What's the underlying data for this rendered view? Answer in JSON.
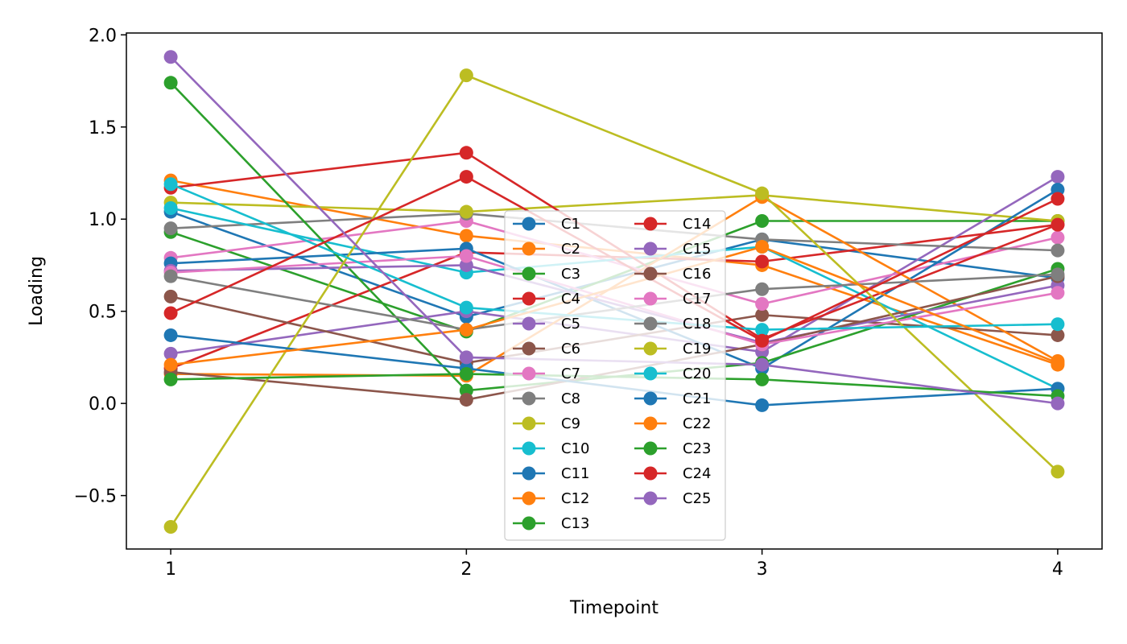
{
  "chart_data": {
    "type": "line",
    "title": "",
    "xlabel": "Timepoint",
    "ylabel": "Loading",
    "x": [
      1,
      2,
      3,
      4
    ],
    "x_ticks": [
      "1",
      "2",
      "3",
      "4"
    ],
    "y_ticks": [
      "−0.5",
      "0.0",
      "0.5",
      "1.0",
      "1.5",
      "2.0"
    ],
    "y_tick_values": [
      -0.5,
      0.0,
      0.5,
      1.0,
      1.5,
      2.0
    ],
    "xlim": [
      0.85,
      4.15
    ],
    "ylim": [
      -0.79,
      2.01
    ],
    "grid": false,
    "legend_position": "center-bottom",
    "legend_columns": 2,
    "marker": "circle",
    "series": [
      {
        "name": "C1",
        "color": "#1f77b4",
        "values": [
          1.04,
          0.47,
          0.89,
          0.68
        ]
      },
      {
        "name": "C2",
        "color": "#ff7f0e",
        "values": [
          1.21,
          0.91,
          0.75,
          0.21
        ]
      },
      {
        "name": "C3",
        "color": "#2ca02c",
        "values": [
          0.93,
          0.39,
          0.99,
          0.99
        ]
      },
      {
        "name": "C4",
        "color": "#d62728",
        "values": [
          0.19,
          0.82,
          0.77,
          0.97
        ]
      },
      {
        "name": "C5",
        "color": "#9467bd",
        "values": [
          0.27,
          0.5,
          0.28,
          1.23
        ]
      },
      {
        "name": "C6",
        "color": "#8c564b",
        "values": [
          0.58,
          0.22,
          0.48,
          0.37
        ]
      },
      {
        "name": "C7",
        "color": "#e377c2",
        "values": [
          0.79,
          0.99,
          0.54,
          0.9
        ]
      },
      {
        "name": "C8",
        "color": "#7f7f7f",
        "values": [
          0.95,
          1.03,
          0.89,
          0.83
        ]
      },
      {
        "name": "C9",
        "color": "#bcbd22",
        "values": [
          1.09,
          1.04,
          1.13,
          0.99
        ]
      },
      {
        "name": "C10",
        "color": "#17becf",
        "values": [
          1.06,
          0.71,
          0.85,
          0.08
        ]
      },
      {
        "name": "C11",
        "color": "#1f77b4",
        "values": [
          0.76,
          0.84,
          0.19,
          1.16
        ]
      },
      {
        "name": "C12",
        "color": "#ff7f0e",
        "values": [
          0.16,
          0.15,
          1.12,
          0.23
        ]
      },
      {
        "name": "C13",
        "color": "#2ca02c",
        "values": [
          1.74,
          0.07,
          0.22,
          0.73
        ]
      },
      {
        "name": "C14",
        "color": "#d62728",
        "values": [
          1.17,
          1.36,
          0.35,
          0.97
        ]
      },
      {
        "name": "C15",
        "color": "#9467bd",
        "values": [
          0.72,
          0.75,
          0.33,
          0.64
        ]
      },
      {
        "name": "C16",
        "color": "#8c564b",
        "values": [
          0.17,
          0.02,
          0.32,
          0.69
        ]
      },
      {
        "name": "C17",
        "color": "#e377c2",
        "values": [
          0.71,
          0.8,
          0.32,
          0.6
        ]
      },
      {
        "name": "C18",
        "color": "#7f7f7f",
        "values": [
          0.69,
          0.4,
          0.62,
          0.7
        ]
      },
      {
        "name": "C19",
        "color": "#bcbd22",
        "values": [
          -0.67,
          1.78,
          1.14,
          -0.37
        ]
      },
      {
        "name": "C20",
        "color": "#17becf",
        "values": [
          1.19,
          0.52,
          0.4,
          0.43
        ]
      },
      {
        "name": "C21",
        "color": "#1f77b4",
        "values": [
          0.37,
          0.19,
          -0.01,
          0.08
        ]
      },
      {
        "name": "C22",
        "color": "#ff7f0e",
        "values": [
          0.21,
          0.4,
          0.85,
          0.22
        ]
      },
      {
        "name": "C23",
        "color": "#2ca02c",
        "values": [
          0.13,
          0.16,
          0.13,
          0.04
        ]
      },
      {
        "name": "C24",
        "color": "#d62728",
        "values": [
          0.49,
          1.23,
          0.34,
          1.11
        ]
      },
      {
        "name": "C25",
        "color": "#9467bd",
        "values": [
          1.88,
          0.25,
          0.21,
          0.0
        ]
      }
    ]
  }
}
